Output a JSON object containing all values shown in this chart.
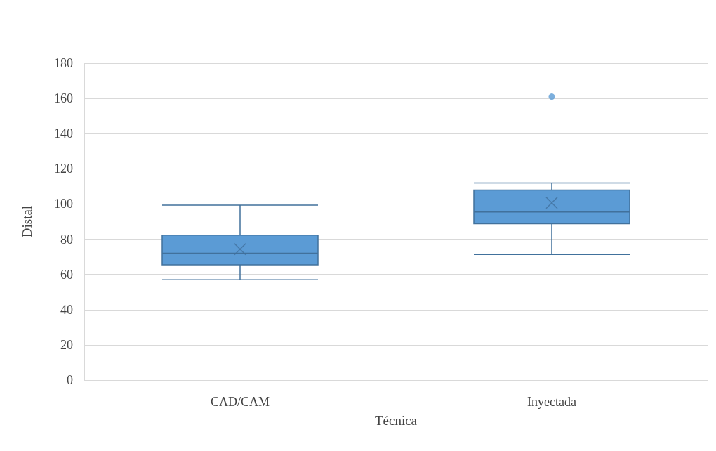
{
  "chart_data": {
    "type": "box",
    "xlabel": "Técnica",
    "ylabel": "Distal",
    "categories": [
      "CAD/CAM",
      "Inyectada"
    ],
    "series": [
      {
        "color": "#5b9bd5",
        "boxes": [
          {
            "low": 57,
            "q1": 65.5,
            "median": 72,
            "q3": 82.3,
            "high": 99.4,
            "mean": 74.3
          },
          {
            "low": 71.3,
            "q1": 88.8,
            "median": 95.5,
            "q3": 108,
            "high": 112,
            "mean": 100.7,
            "outliers": [
              161
            ]
          }
        ]
      }
    ],
    "ylim": [
      0,
      180
    ],
    "yticks": [
      0,
      20,
      40,
      60,
      80,
      100,
      120,
      140,
      160,
      180
    ],
    "grid": "y"
  }
}
